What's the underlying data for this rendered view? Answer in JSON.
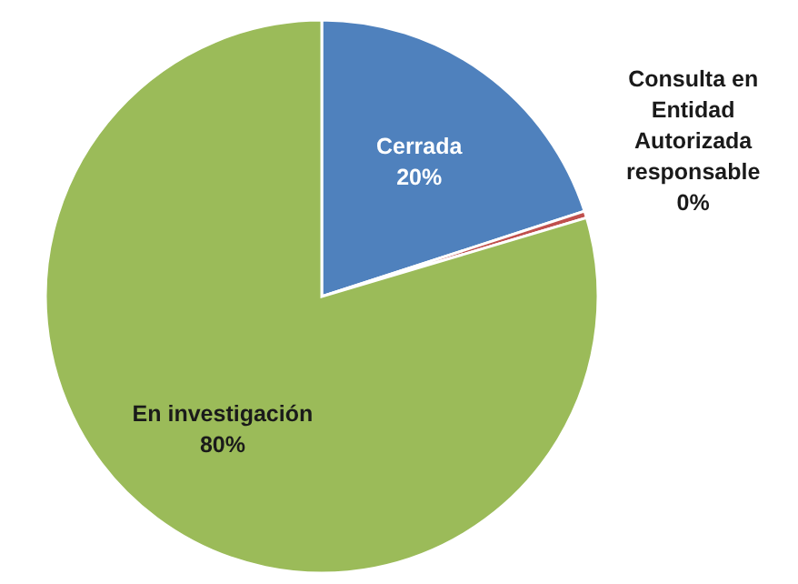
{
  "chart_data": {
    "type": "pie",
    "categories": [
      "Cerrada",
      "Consulta en Entidad Autorizada responsable",
      "En investigación"
    ],
    "values": [
      20,
      0.4,
      79.6
    ],
    "colors": [
      "#4f81bd",
      "#c0504d",
      "#9bbb59"
    ],
    "value_labels": [
      "20%",
      "0%",
      "80%"
    ]
  }
}
